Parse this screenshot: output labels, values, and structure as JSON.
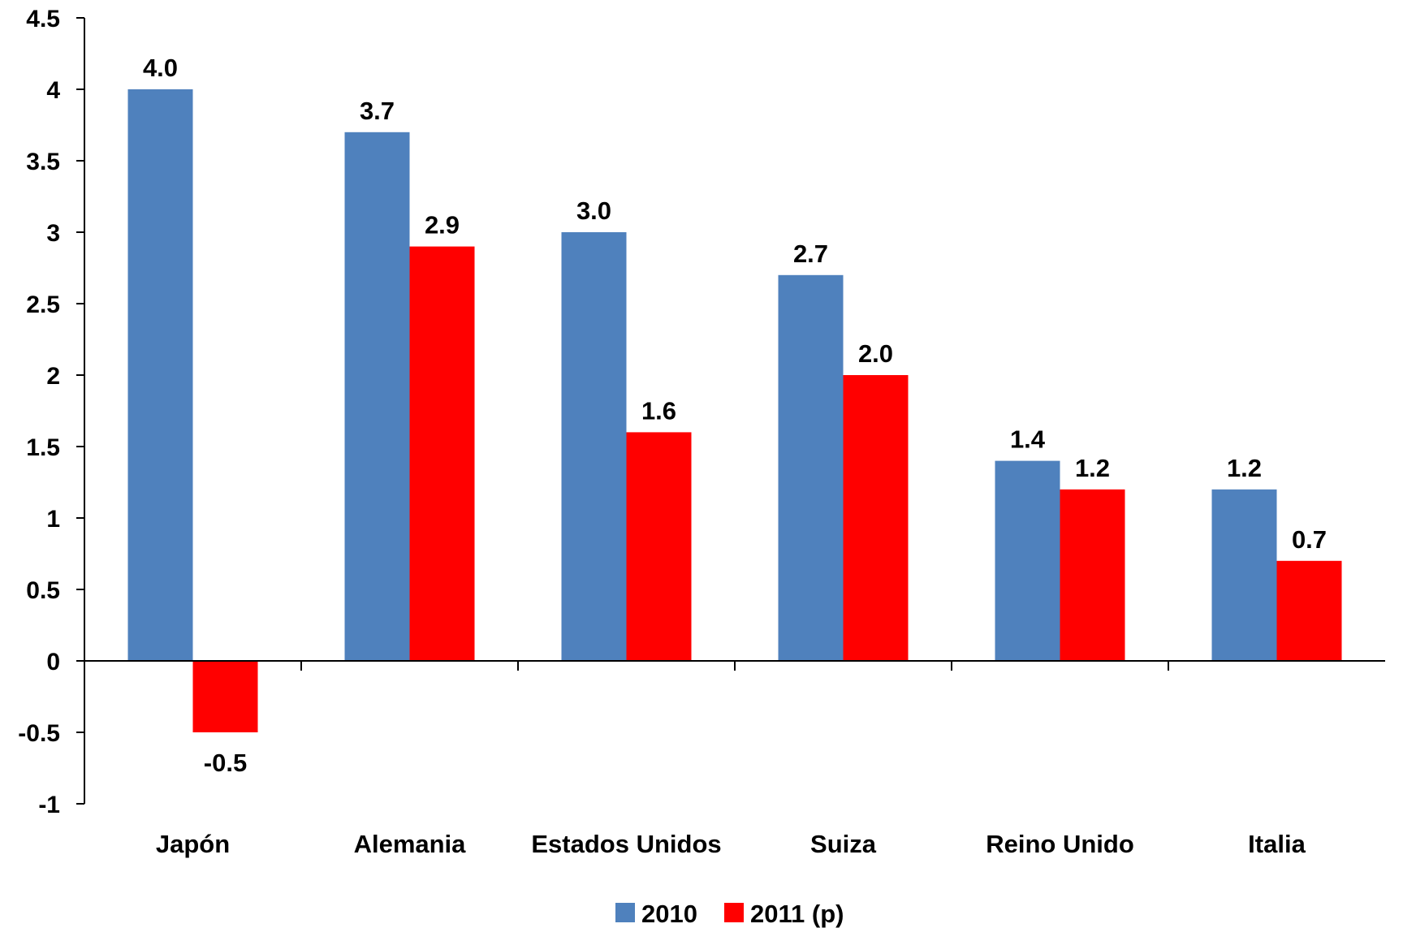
{
  "chart_data": {
    "type": "bar",
    "categories": [
      "Japón",
      "Alemania",
      "Estados Unidos",
      "Suiza",
      "Reino Unido",
      "Italia"
    ],
    "series": [
      {
        "name": "2010",
        "color": "#4F81BD",
        "values": [
          4.0,
          3.7,
          3.0,
          2.7,
          1.4,
          1.2
        ],
        "labels": [
          "4.0",
          "3.7",
          "3.0",
          "2.7",
          "1.4",
          "1.2"
        ]
      },
      {
        "name": "2011 (p)",
        "color": "#FF0000",
        "values": [
          -0.5,
          2.9,
          1.6,
          2.0,
          1.2,
          0.7
        ],
        "labels": [
          "-0.5",
          "2.9",
          "1.6",
          "2.0",
          "1.2",
          "0.7"
        ]
      }
    ],
    "yticks": [
      -1,
      -0.5,
      0,
      0.5,
      1,
      1.5,
      2,
      2.5,
      3,
      3.5,
      4,
      4.5
    ],
    "ytick_labels": [
      "-1",
      "-0.5",
      "0",
      "0.5",
      "1",
      "1.5",
      "2",
      "2.5",
      "3",
      "3.5",
      "4",
      "4.5"
    ],
    "ylim": [
      -1,
      4.5
    ],
    "grid": false,
    "legend": "bottom-center",
    "title": "",
    "xlabel": "",
    "ylabel": ""
  }
}
